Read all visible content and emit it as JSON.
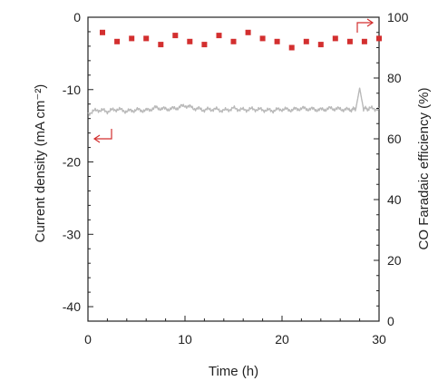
{
  "chart_data": {
    "type": "scatter+line",
    "title": "",
    "xlabel": "Time (h)",
    "ylabel_left": "Current density (mA cm⁻²)",
    "ylabel_right": "CO Faradaic efficiency (%)",
    "xlim": [
      0,
      30
    ],
    "ylim_left": [
      -42,
      0
    ],
    "ylim_right": [
      0,
      100
    ],
    "x_ticks": [
      0,
      10,
      20,
      30
    ],
    "y_left_ticks": [
      0,
      -10,
      -20,
      -30,
      -40
    ],
    "y_right_ticks": [
      0,
      20,
      40,
      60,
      80,
      100
    ],
    "series": [
      {
        "axis": "left",
        "style": "line",
        "color": "#b9b9b9",
        "x": [
          0,
          1,
          2,
          3,
          4,
          5,
          6,
          7,
          8,
          9,
          10,
          11,
          12,
          13,
          14,
          15,
          16,
          17,
          18,
          19,
          20,
          21,
          22,
          23,
          24,
          25,
          26,
          27,
          27.6,
          28.0,
          28.4,
          29,
          30
        ],
        "y": [
          -13.3,
          -12.8,
          -13.0,
          -12.7,
          -13.0,
          -12.8,
          -12.9,
          -12.5,
          -12.7,
          -12.6,
          -12.2,
          -12.6,
          -12.8,
          -12.7,
          -12.9,
          -12.6,
          -12.8,
          -12.7,
          -12.8,
          -12.9,
          -12.7,
          -12.8,
          -12.6,
          -12.7,
          -12.8,
          -12.6,
          -12.7,
          -12.8,
          -12.7,
          -9.8,
          -12.7,
          -12.6,
          -12.7
        ]
      },
      {
        "axis": "right",
        "style": "marker",
        "color": "#d32f2f",
        "x": [
          1.5,
          3,
          4.5,
          6,
          7.5,
          9,
          10.5,
          12,
          13.5,
          15,
          16.5,
          18,
          19.5,
          21,
          22.5,
          24,
          25.5,
          27,
          28.5,
          30
        ],
        "y": [
          95,
          92,
          93,
          93,
          91,
          94,
          92,
          91,
          94,
          92,
          95,
          93,
          92,
          90,
          92,
          91,
          93,
          92,
          92,
          93
        ]
      }
    ],
    "annotations": {
      "left_arrow_color": "#d32f2f",
      "right_arrow_color": "#d32f2f"
    }
  }
}
